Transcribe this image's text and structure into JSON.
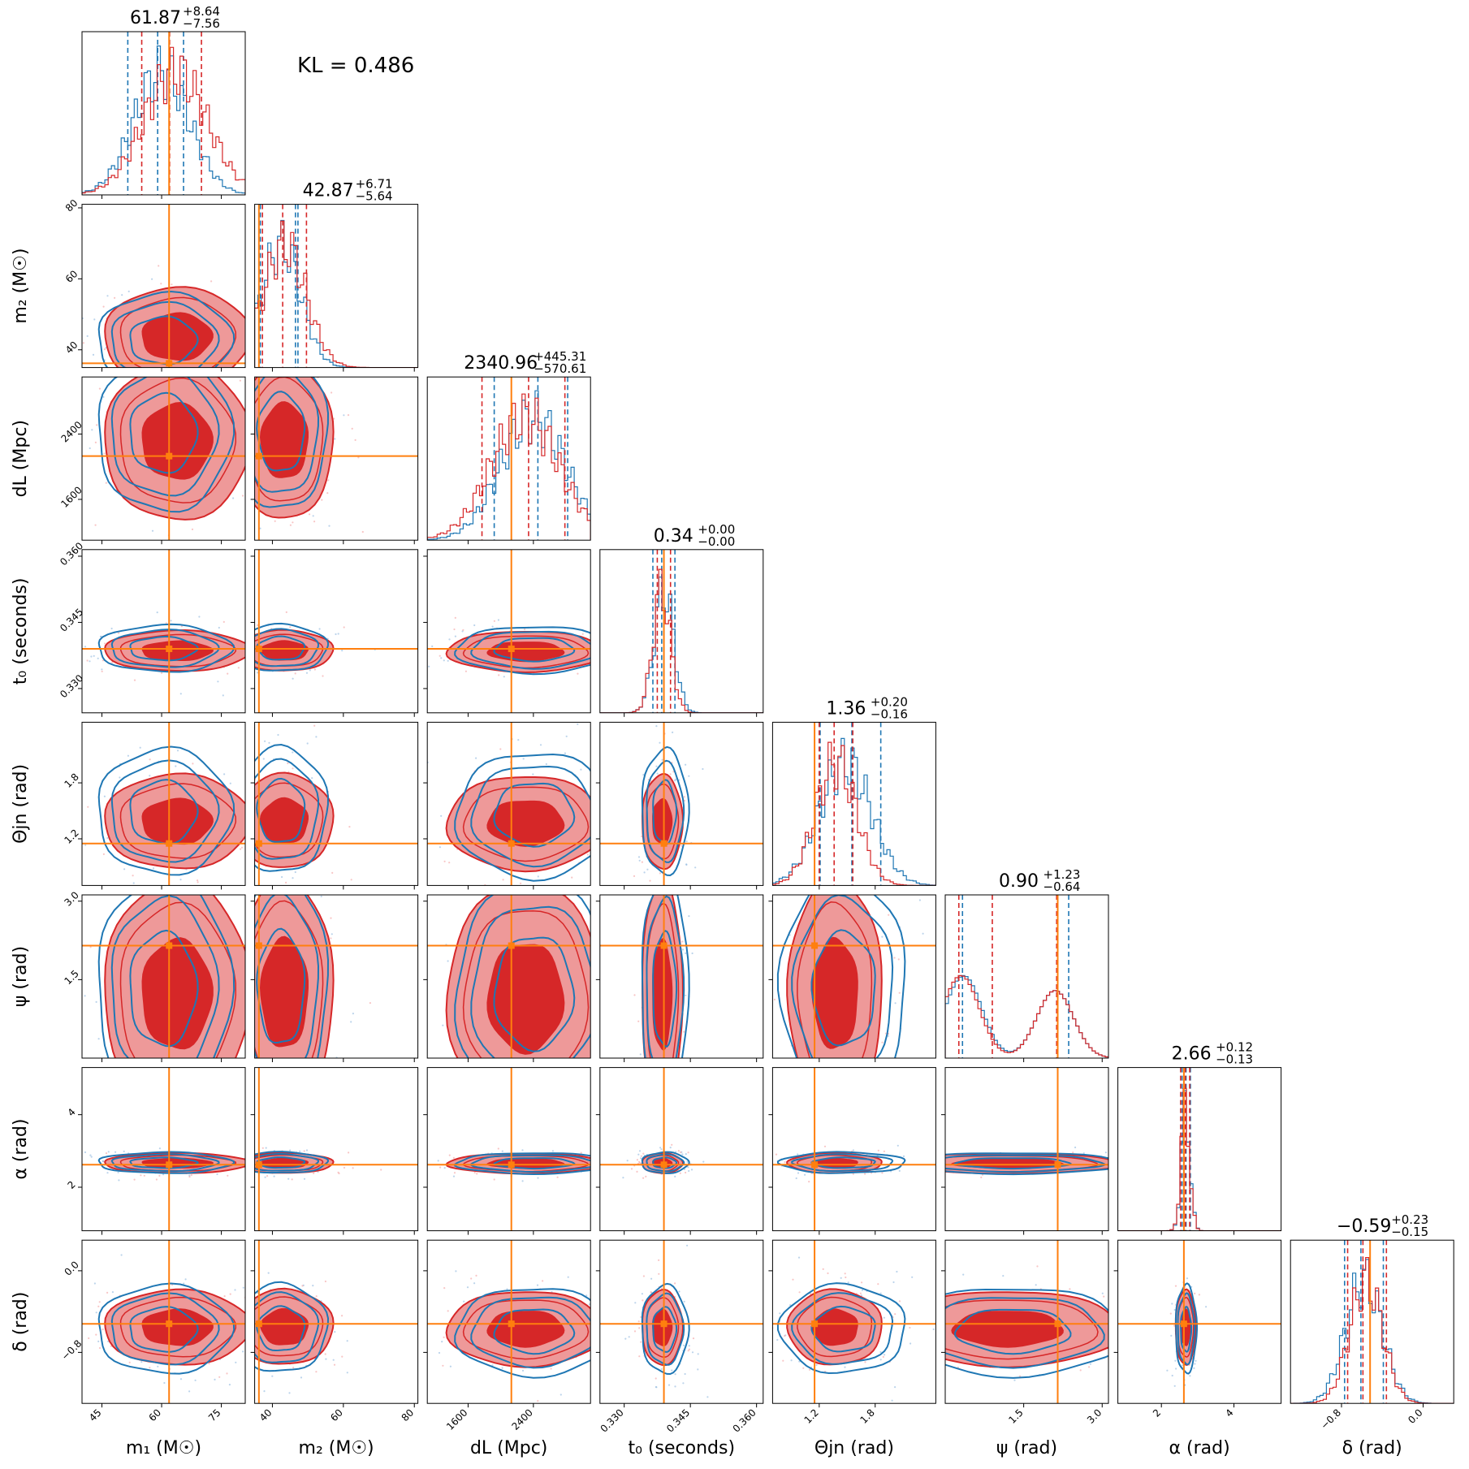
{
  "annotation": "KL = 0.486",
  "colors": {
    "posterior_a": "#d62728",
    "posterior_b": "#1f77b4",
    "truth": "#ff7f0e",
    "fill_dark": "#d62728",
    "fill_light": "#ee9999"
  },
  "chart_data": {
    "type": "corner",
    "parameters": [
      {
        "label": "m₁ (M☉)",
        "range": [
          40,
          81
        ],
        "ticks": [
          45,
          60,
          75
        ],
        "tick_labels": [
          "45",
          "60",
          "75"
        ],
        "truth": 61.87,
        "title": "61.87",
        "plus": "+8.64",
        "minus": "−7.56"
      },
      {
        "label": "m₂ (M☉)",
        "range": [
          35,
          81
        ],
        "ticks": [
          40,
          60,
          80
        ],
        "tick_labels": [
          "40",
          "60",
          "80"
        ],
        "truth": 36.2,
        "title": "42.87",
        "plus": "+6.71",
        "minus": "−5.64"
      },
      {
        "label": "dL (Mpc)",
        "range": [
          1100,
          3100
        ],
        "ticks": [
          1600,
          2400
        ],
        "tick_labels": [
          "1600",
          "2400"
        ],
        "truth": 2130,
        "title": "2340.96",
        "plus": "+445.31",
        "minus": "−570.61"
      },
      {
        "label": "t₀ (seconds)",
        "range": [
          0.3245,
          0.3615
        ],
        "ticks": [
          0.33,
          0.345,
          0.36
        ],
        "tick_labels": [
          "0.330",
          "0.345",
          "0.360"
        ],
        "truth": 0.339,
        "title": "0.34",
        "plus": "+0.00",
        "minus": "−0.00"
      },
      {
        "label": "Θjn (rad)",
        "range": [
          0.7,
          2.45
        ],
        "ticks": [
          1.2,
          1.8
        ],
        "tick_labels": [
          "1.2",
          "1.8"
        ],
        "truth": 1.15,
        "title": "1.36",
        "plus": "+0.20",
        "minus": "−0.16"
      },
      {
        "label": "ψ (rad)",
        "range": [
          0.0,
          3.12
        ],
        "ticks": [
          1.5,
          3.0
        ],
        "tick_labels": [
          "1.5",
          "3.0"
        ],
        "truth": 2.15,
        "title": "0.90",
        "plus": "+1.23",
        "minus": "−0.64"
      },
      {
        "label": "α (rad)",
        "range": [
          0.8,
          5.3
        ],
        "ticks": [
          2,
          4
        ],
        "tick_labels": [
          "2",
          "4"
        ],
        "truth": 2.62,
        "title": "2.66",
        "plus": "+0.12",
        "minus": "−0.13"
      },
      {
        "label": "δ (rad)",
        "range": [
          -1.3,
          0.3
        ],
        "ticks": [
          -0.8,
          0.0
        ],
        "tick_labels": [
          "−0.8",
          "0.0"
        ],
        "truth": -0.52,
        "title": "−0.59",
        "plus": "+0.23",
        "minus": "−0.15"
      }
    ],
    "quantiles": {
      "red": [
        [
          55,
          62,
          70
        ],
        [
          37.2,
          42.9,
          49.6
        ],
        [
          1770,
          2341,
          2786
        ],
        [
          0.3375,
          0.339,
          0.3405
        ],
        [
          1.2,
          1.36,
          1.56
        ],
        [
          0.26,
          0.9,
          2.13
        ],
        [
          2.53,
          2.66,
          2.78
        ],
        [
          -0.74,
          -0.59,
          -0.36
        ]
      ],
      "blue": [
        [
          51.5,
          59,
          65.5
        ],
        [
          36.6,
          46.5,
          47.2
        ],
        [
          1920,
          2455,
          2820
        ],
        [
          0.3365,
          0.3385,
          0.3415
        ],
        [
          1.21,
          1.55,
          1.86
        ],
        [
          0.33,
          2.15,
          2.36
        ],
        [
          2.57,
          2.68,
          2.8
        ],
        [
          -0.77,
          -0.61,
          -0.39
        ]
      ]
    },
    "posteriors": {
      "red": {
        "mean": [
          63.5,
          43.5,
          2300,
          0.3385,
          1.38,
          1.2,
          2.66,
          -0.56
        ],
        "sd": [
          8,
          6,
          420,
          0.002,
          0.22,
          0.95,
          0.12,
          0.16
        ]
      },
      "blue": {
        "mean": [
          60.0,
          42.5,
          2400,
          0.339,
          1.48,
          1.3,
          2.67,
          -0.58
        ],
        "sd": [
          7,
          5.5,
          400,
          0.0022,
          0.28,
          0.9,
          0.12,
          0.18
        ]
      }
    }
  }
}
